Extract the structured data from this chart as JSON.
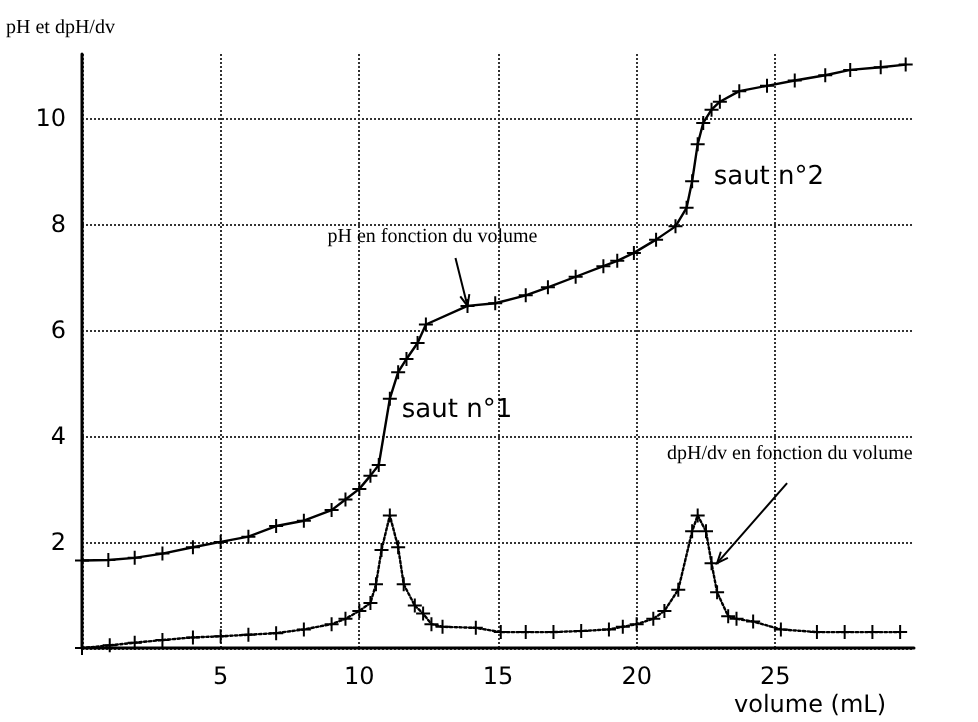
{
  "chart_data": {
    "type": "line",
    "ylabel": "pH et dpH/dv",
    "xlabel": "volume (mL)",
    "xlim": [
      0,
      30
    ],
    "xticks": [
      {
        "value": 0,
        "label": null
      },
      5,
      10,
      15,
      20,
      25
    ],
    "ylim": [
      0,
      11.2
    ],
    "yticks": [
      {
        "value": 0,
        "label": null
      },
      2,
      4,
      6,
      8,
      10
    ],
    "grid": true,
    "marker": "cross",
    "series": [
      {
        "color": "#000000",
        "line_style": "solid",
        "x": [
          0,
          0.95,
          1.9,
          2.9,
          4,
          5,
          6,
          7,
          8,
          9,
          9.5,
          10,
          10.4,
          10.7,
          11.1,
          11.4,
          11.7,
          12.1,
          12.4,
          13.9,
          14.9,
          16,
          16.8,
          17.8,
          18.8,
          19.3,
          19.9,
          20.7,
          21.4,
          21.8,
          22,
          22.2,
          22.4,
          22.7,
          23,
          23.7,
          24.7,
          25.7,
          26.8,
          27.7,
          28.8,
          29.7
        ],
        "values": [
          1.65,
          1.66,
          1.7,
          1.78,
          1.9,
          2.0,
          2.1,
          2.3,
          2.4,
          2.6,
          2.8,
          3.0,
          3.25,
          3.45,
          4.7,
          5.2,
          5.45,
          5.75,
          6.1,
          6.45,
          6.5,
          6.65,
          6.8,
          7.0,
          7.2,
          7.3,
          7.45,
          7.7,
          7.95,
          8.3,
          8.8,
          9.5,
          9.9,
          10.15,
          10.3,
          10.5,
          10.6,
          10.7,
          10.8,
          10.9,
          10.95,
          11.0
        ]
      },
      {
        "color": "#000000",
        "line_style": "dotted",
        "x": [
          0,
          1,
          1.9,
          2.9,
          4,
          5,
          6,
          7,
          8,
          9,
          9.5,
          10,
          10.4,
          10.6,
          10.8,
          11.1,
          11.4,
          11.6,
          12,
          12.3,
          12.6,
          13,
          14.2,
          15.1,
          16,
          17,
          18,
          19,
          19.5,
          20,
          20.6,
          21,
          21.5,
          22,
          22.2,
          22.5,
          22.7,
          22.9,
          23.3,
          23.6,
          24.2,
          25.2,
          26.5,
          27.5,
          28.5,
          29.5
        ],
        "values": [
          0,
          0.05,
          0.1,
          0.15,
          0.2,
          0.22,
          0.25,
          0.28,
          0.35,
          0.45,
          0.55,
          0.7,
          0.85,
          1.2,
          1.85,
          2.5,
          1.9,
          1.2,
          0.8,
          0.65,
          0.45,
          0.4,
          0.38,
          0.3,
          0.3,
          0.3,
          0.32,
          0.35,
          0.4,
          0.45,
          0.55,
          0.7,
          1.1,
          2.2,
          2.5,
          2.2,
          1.6,
          1.05,
          0.6,
          0.55,
          0.5,
          0.35,
          0.3,
          0.3,
          0.3,
          0.3
        ]
      }
    ],
    "annotations": [
      {
        "text": "pH en fonction du volume",
        "x": 13.9,
        "y": 6.45
      },
      {
        "text": "saut n°1",
        "x": 11.1,
        "y": 4.7
      },
      {
        "text": "saut n°2",
        "x": 22.2,
        "y": 9.5
      },
      {
        "text": "dpH/dv en fonction du volume",
        "x": 22.9,
        "y": 1.6
      }
    ]
  }
}
